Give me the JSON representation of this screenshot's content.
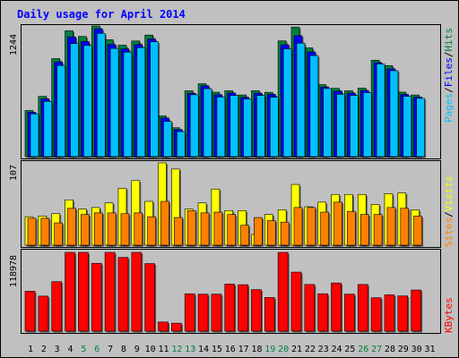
{
  "chart_data": [
    {
      "type": "bar",
      "title": "Daily usage for April 2014",
      "categories": [
        "1",
        "2",
        "3",
        "4",
        "5",
        "6",
        "7",
        "8",
        "9",
        "10",
        "11",
        "12",
        "13",
        "14",
        "15",
        "16",
        "17",
        "18",
        "19",
        "20",
        "21",
        "22",
        "23",
        "24",
        "25",
        "26",
        "27",
        "28",
        "29",
        "30",
        "31"
      ],
      "weekend_days": [
        "5",
        "6",
        "12",
        "13",
        "19",
        "20",
        "26",
        "27"
      ],
      "ymax_label": "1244",
      "ylim": [
        0,
        1244
      ],
      "series": [
        {
          "name": "Hits",
          "color": "#008040",
          "values": [
            439,
            574,
            933,
            1198,
            1144,
            1244,
            1113,
            1061,
            1101,
            1157,
            387,
            275,
            627,
            694,
            613,
            627,
            587,
            627,
            612,
            1102,
            1233,
            1036,
            685,
            650,
            627,
            652,
            918,
            867,
            614,
            587,
            0
          ]
        },
        {
          "name": "Files",
          "color": "#0000ff",
          "values": [
            422,
            550,
            902,
            1140,
            1096,
            1218,
            1068,
            1026,
            1068,
            1120,
            368,
            258,
            602,
            674,
            589,
            606,
            565,
            604,
            593,
            1065,
            1152,
            997,
            663,
            624,
            605,
            630,
            895,
            836,
            592,
            567,
            0
          ]
        },
        {
          "name": "Pages",
          "color": "#00c0ff",
          "values": [
            407,
            526,
            867,
            1077,
            1058,
            1174,
            1030,
            995,
            1038,
            1093,
            335,
            238,
            589,
            647,
            568,
            582,
            548,
            582,
            565,
            1026,
            1080,
            962,
            649,
            593,
            583,
            609,
            882,
            818,
            574,
            555,
            0
          ]
        }
      ]
    },
    {
      "type": "bar",
      "ymax_label": "107",
      "ylim": [
        0,
        107
      ],
      "series": [
        {
          "name": "Visits",
          "color": "#ffff00",
          "values": [
            37,
            38,
            41,
            59,
            47,
            49,
            55,
            74,
            84,
            57,
            107,
            99,
            47,
            55,
            73,
            45,
            45,
            14,
            40,
            46,
            79,
            50,
            56,
            66,
            66,
            66,
            53,
            67,
            68,
            46,
            0
          ]
        },
        {
          "name": "Sites",
          "color": "#ff8000",
          "values": [
            35,
            35,
            29,
            48,
            40,
            42,
            42,
            41,
            42,
            37,
            57,
            36,
            45,
            42,
            43,
            40,
            26,
            36,
            32,
            30,
            49,
            49,
            43,
            56,
            44,
            40,
            40,
            49,
            48,
            38,
            0
          ]
        }
      ]
    },
    {
      "type": "bar",
      "ymax_label": "118978",
      "ylim": [
        0,
        118978
      ],
      "series": [
        {
          "name": "KBytes",
          "color": "#ff0000",
          "values": [
            60280,
            52950,
            74740,
            118978,
            118978,
            102480,
            118978,
            111390,
            118978,
            102060,
            13780,
            12010,
            56430,
            55850,
            55850,
            71060,
            70210,
            62750,
            50880,
            118978,
            89190,
            70490,
            56450,
            72780,
            55850,
            70500,
            50420,
            54840,
            53260,
            62150,
            0
          ]
        }
      ]
    }
  ],
  "legends": {
    "top": {
      "a": "Pages",
      "b": "Files",
      "c": "Hits",
      "sep": "/",
      "a_color": "#00c0ff",
      "b_color": "#0000ff",
      "c_color": "#008040"
    },
    "middle": {
      "a": "Sites",
      "b": "Visits",
      "sep": "/",
      "a_color": "#ff8000",
      "b_color": "#ffff00"
    },
    "bottom": {
      "a": "KBytes",
      "a_color": "#ff0000"
    }
  },
  "colors": {
    "background": "#c0c0c0",
    "panel": "#c0c0c0",
    "title": "#0000ff",
    "axis_label": "#000000",
    "weekend_label": "#008040",
    "grid": "#808080"
  }
}
